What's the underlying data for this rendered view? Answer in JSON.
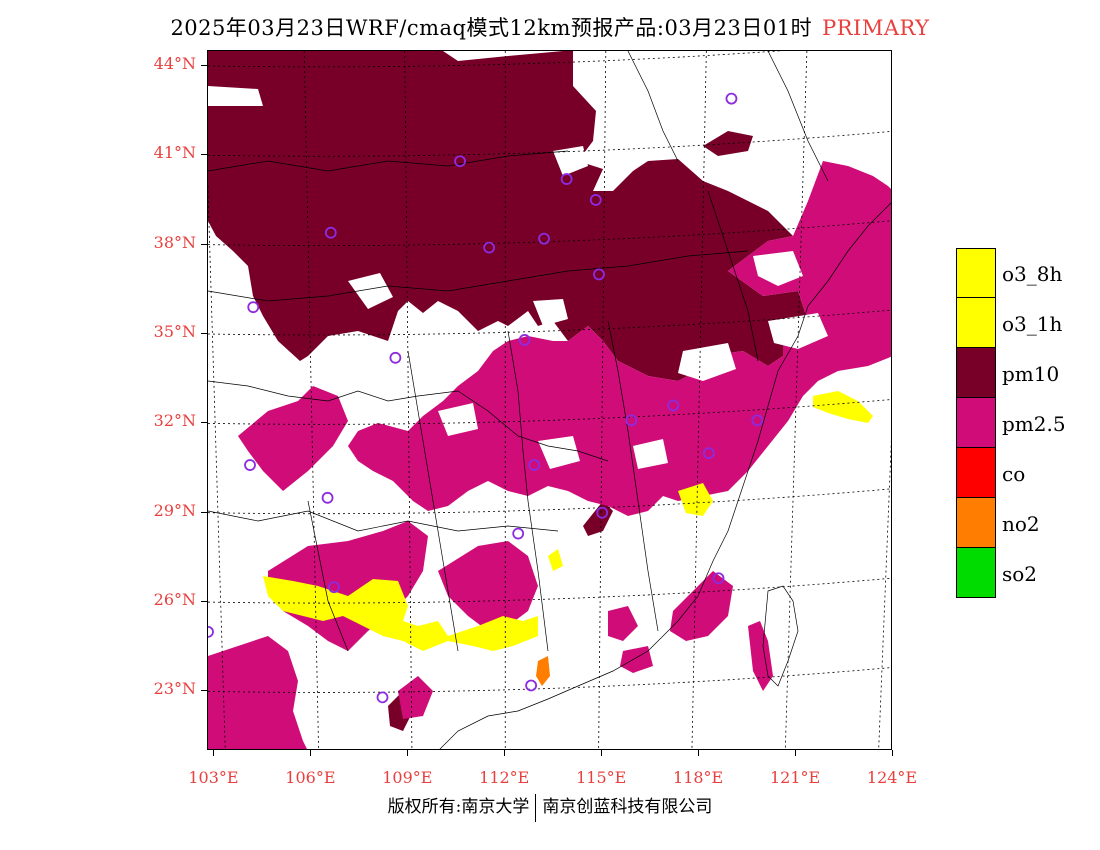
{
  "title": {
    "main": "2025年03月23日WRF/cmaq模式12km预报产品:03月23日01时",
    "tag": "PRIMARY"
  },
  "colors": {
    "o3_8h": "#ffff00",
    "o3_1h": "#ffff00",
    "pm10": "#780028",
    "pm2_5": "#cf0c78",
    "co": "#ff0000",
    "no2": "#ff7d00",
    "so2": "#00dc00",
    "station": "#8c2be0",
    "axis_label": "#e8403e"
  },
  "map": {
    "lon_range": [
      102.8,
      124.0
    ],
    "lat_range": [
      21.0,
      44.5
    ],
    "lon_ticks": [
      "103°E",
      "106°E",
      "109°E",
      "112°E",
      "115°E",
      "118°E",
      "121°E",
      "124°E"
    ],
    "lat_ticks": [
      "44°N",
      "41°N",
      "38°N",
      "35°N",
      "32°N",
      "29°N",
      "26°N",
      "23°N"
    ],
    "grid": "dotted",
    "stations": [
      {
        "lon": 119.0,
        "lat": 42.9
      },
      {
        "lon": 110.6,
        "lat": 40.8
      },
      {
        "lon": 113.9,
        "lat": 40.2
      },
      {
        "lon": 114.8,
        "lat": 39.5
      },
      {
        "lon": 106.6,
        "lat": 38.4
      },
      {
        "lon": 111.5,
        "lat": 37.9
      },
      {
        "lon": 113.2,
        "lat": 38.2
      },
      {
        "lon": 114.9,
        "lat": 37.0
      },
      {
        "lon": 104.2,
        "lat": 35.9
      },
      {
        "lon": 112.6,
        "lat": 34.8
      },
      {
        "lon": 108.6,
        "lat": 34.2
      },
      {
        "lon": 117.2,
        "lat": 32.6
      },
      {
        "lon": 115.9,
        "lat": 32.1
      },
      {
        "lon": 119.8,
        "lat": 32.1
      },
      {
        "lon": 118.3,
        "lat": 31.0
      },
      {
        "lon": 104.1,
        "lat": 30.6
      },
      {
        "lon": 112.9,
        "lat": 30.6
      },
      {
        "lon": 106.5,
        "lat": 29.5
      },
      {
        "lon": 115.0,
        "lat": 29.0
      },
      {
        "lon": 112.4,
        "lat": 28.3
      },
      {
        "lon": 118.6,
        "lat": 26.8
      },
      {
        "lon": 106.7,
        "lat": 26.5
      },
      {
        "lon": 102.8,
        "lat": 25.0
      },
      {
        "lon": 108.2,
        "lat": 22.8
      },
      {
        "lon": 112.8,
        "lat": 23.2
      }
    ]
  },
  "legend": [
    {
      "label": "o3_8h",
      "color": "#ffff00"
    },
    {
      "label": "o3_1h",
      "color": "#ffff00"
    },
    {
      "label": "pm10",
      "color": "#780028"
    },
    {
      "label": "pm2.5",
      "color": "#cf0c78"
    },
    {
      "label": "co",
      "color": "#ff0000"
    },
    {
      "label": "no2",
      "color": "#ff7d00"
    },
    {
      "label": "so2",
      "color": "#00dc00"
    }
  ],
  "footer": {
    "left": "版权所有:南京大学",
    "right": "南京创蓝科技有限公司"
  }
}
